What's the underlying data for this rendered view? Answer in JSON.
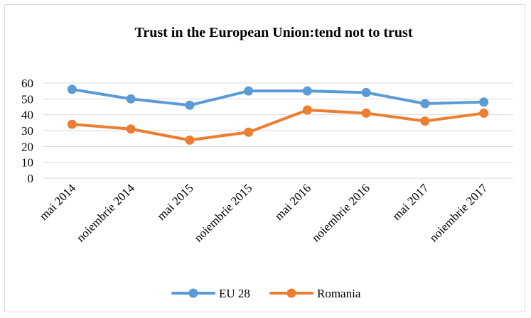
{
  "chart_data": {
    "type": "line",
    "title": "Trust in the European Union:tend not to trust",
    "xlabel": "",
    "ylabel": "",
    "categories": [
      "mai 2014",
      "noiembrie 2014",
      "mai 2015",
      "noiembrie 2015",
      "mai 2016",
      "noiembrie 2016",
      "mai 2017",
      "noiembrie 2017"
    ],
    "series": [
      {
        "name": "EU 28",
        "color": "#5b9bd5",
        "values": [
          56,
          50,
          46,
          55,
          55,
          54,
          47,
          48
        ]
      },
      {
        "name": "Romania",
        "color": "#ed7d31",
        "values": [
          34,
          31,
          24,
          29,
          43,
          41,
          36,
          41
        ]
      }
    ],
    "ylim": [
      0,
      60
    ],
    "yticks": [
      "0",
      "10",
      "20",
      "30",
      "40",
      "50",
      "60"
    ],
    "grid": true,
    "legend_position": "bottom"
  }
}
